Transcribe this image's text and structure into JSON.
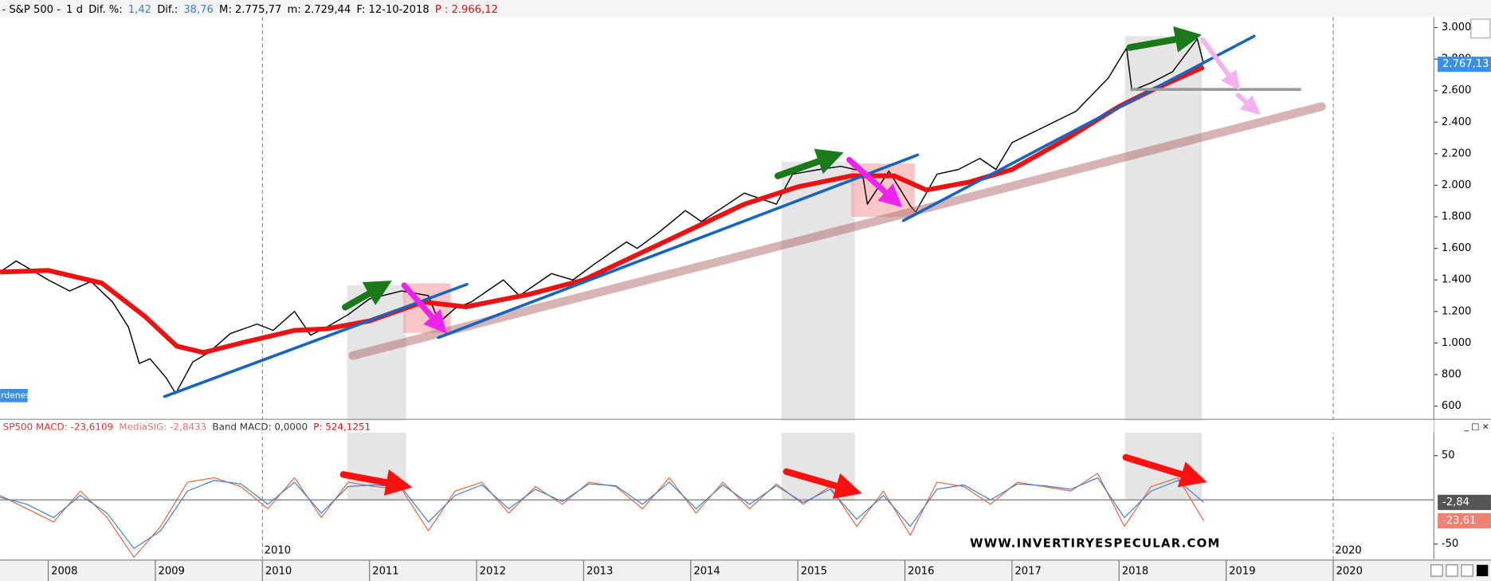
{
  "header": [
    {
      "text": "- S&P 500 -",
      "color": "#000000"
    },
    {
      "text": "1 d",
      "color": "#000000"
    },
    {
      "text": "Dif. %:",
      "color": "#000000"
    },
    {
      "text": "1,42",
      "color": "#3a7fd0"
    },
    {
      "text": "Dif.:",
      "color": "#000000"
    },
    {
      "text": "38,76",
      "color": "#3a7fd0"
    },
    {
      "text": "M: 2.775,77",
      "color": "#000000"
    },
    {
      "text": "m: 2.729,44",
      "color": "#000000"
    },
    {
      "text": "F: 12-10-2018",
      "color": "#000000"
    },
    {
      "text": "P : 2.966,12",
      "color": "#e01010"
    }
  ],
  "orders_button": "rdenes",
  "watermark": "WWW.INVERTIRYESPECULAR.COM",
  "chart_data": [
    {
      "type": "line",
      "xlim": [
        2007.55,
        2020.94
      ],
      "ylim": [
        522,
        3066
      ],
      "yticks": [
        {
          "value": 600,
          "label": "600"
        },
        {
          "value": 800,
          "label": "800"
        },
        {
          "value": 1000,
          "label": "1.000"
        },
        {
          "value": 1200,
          "label": "1.200"
        },
        {
          "value": 1400,
          "label": "1.400"
        },
        {
          "value": 1600,
          "label": "1.600"
        },
        {
          "value": 1800,
          "label": "1.800"
        },
        {
          "value": 2000,
          "label": "2.000"
        },
        {
          "value": 2200,
          "label": "2.200"
        },
        {
          "value": 2400,
          "label": "2.400"
        },
        {
          "value": 2600,
          "label": "2.600"
        },
        {
          "value": 2800,
          "label": "2.800"
        },
        {
          "value": 3000,
          "label": "3.000"
        }
      ],
      "period_markers": [
        2010,
        2020
      ],
      "series": [
        {
          "name": "S&P 500",
          "color": "#000000",
          "width": 1.2,
          "x": [
            2007.55,
            2007.7,
            2007.8,
            2008.0,
            2008.2,
            2008.4,
            2008.6,
            2008.75,
            2008.85,
            2008.95,
            2009.1,
            2009.19,
            2009.35,
            2009.5,
            2009.7,
            2009.95,
            2010.1,
            2010.3,
            2010.45,
            2010.6,
            2010.8,
            2011.0,
            2011.3,
            2011.55,
            2011.65,
            2011.8,
            2011.95,
            2012.25,
            2012.4,
            2012.7,
            2012.9,
            2013.1,
            2013.4,
            2013.5,
            2013.7,
            2013.95,
            2014.1,
            2014.5,
            2014.8,
            2014.95,
            2015.2,
            2015.4,
            2015.6,
            2015.65,
            2015.85,
            2016.05,
            2016.1,
            2016.3,
            2016.5,
            2016.7,
            2016.85,
            2017.0,
            2017.3,
            2017.6,
            2017.9,
            2018.07,
            2018.12,
            2018.3,
            2018.5,
            2018.7,
            2018.73,
            2018.79
          ],
          "values": [
            1450,
            1520,
            1480,
            1400,
            1330,
            1390,
            1260,
            1100,
            870,
            900,
            780,
            680,
            880,
            940,
            1060,
            1120,
            1080,
            1200,
            1050,
            1100,
            1180,
            1280,
            1330,
            1300,
            1130,
            1220,
            1260,
            1400,
            1300,
            1440,
            1400,
            1500,
            1640,
            1600,
            1700,
            1840,
            1770,
            1950,
            1880,
            2070,
            2100,
            2120,
            2090,
            1880,
            2090,
            1870,
            1830,
            2070,
            2100,
            2170,
            2100,
            2270,
            2370,
            2470,
            2680,
            2870,
            2600,
            2650,
            2720,
            2900,
            2930,
            2767
          ],
          "last_label": "2.767,13",
          "label_color": "#3a8ee6"
        },
        {
          "name": "Media",
          "color": "#ee1111",
          "width": 5,
          "x": [
            2007.55,
            2008.0,
            2008.5,
            2008.9,
            2009.2,
            2009.45,
            2009.8,
            2010.3,
            2010.6,
            2011.0,
            2011.5,
            2011.9,
            2012.5,
            2013.0,
            2013.5,
            2014.0,
            2014.5,
            2015.0,
            2015.5,
            2015.9,
            2016.2,
            2016.6,
            2017.0,
            2017.5,
            2018.0,
            2018.3,
            2018.79
          ],
          "values": [
            1450,
            1460,
            1380,
            1170,
            980,
            940,
            1000,
            1080,
            1090,
            1140,
            1260,
            1230,
            1310,
            1400,
            1560,
            1720,
            1880,
            1990,
            2060,
            2060,
            1970,
            2020,
            2100,
            2290,
            2500,
            2600,
            2750
          ]
        }
      ]
    },
    {
      "type": "line",
      "title": [
        {
          "text": "SP500 MACD: -23,6109",
          "color": "#e03030"
        },
        {
          "text": "MediaSIG: -2,8433",
          "color": "#f07070"
        },
        {
          "text": "Band MACD: 0,0000",
          "color": "#333333"
        },
        {
          "text": "P: 524,1251",
          "color": "#e01010"
        }
      ],
      "xlim": [
        2007.55,
        2020.94
      ],
      "ylim": [
        -67,
        76
      ],
      "xticks": [
        2008,
        2009,
        2010,
        2011,
        2012,
        2013,
        2014,
        2015,
        2016,
        2017,
        2018,
        2019,
        2020
      ],
      "yticks": [
        -50,
        50
      ],
      "series": [
        {
          "name": "MACD",
          "color": "#e8643c",
          "label_color": "#f08070",
          "x": [
            2007.55,
            2007.8,
            2008.05,
            2008.3,
            2008.55,
            2008.8,
            2009.05,
            2009.3,
            2009.55,
            2009.8,
            2010.05,
            2010.3,
            2010.55,
            2010.8,
            2011.05,
            2011.3,
            2011.55,
            2011.8,
            2012.05,
            2012.3,
            2012.55,
            2012.8,
            2013.05,
            2013.3,
            2013.55,
            2013.8,
            2014.05,
            2014.3,
            2014.55,
            2014.8,
            2015.05,
            2015.3,
            2015.55,
            2015.8,
            2016.05,
            2016.3,
            2016.55,
            2016.8,
            2017.05,
            2017.3,
            2017.55,
            2017.8,
            2018.05,
            2018.3,
            2018.55,
            2018.79
          ],
          "values": [
            5,
            -10,
            -25,
            10,
            -20,
            -65,
            -30,
            20,
            25,
            15,
            -10,
            25,
            -20,
            20,
            15,
            12,
            -35,
            10,
            20,
            -15,
            15,
            -5,
            20,
            15,
            -10,
            25,
            -15,
            20,
            -10,
            18,
            -5,
            15,
            -30,
            10,
            -40,
            20,
            15,
            -5,
            20,
            15,
            10,
            30,
            -30,
            15,
            25,
            -23.61
          ],
          "last_label": "-23,61"
        },
        {
          "name": "MediaSIG",
          "color": "#3a7fd0",
          "label_color": "#555555",
          "x": [
            2007.55,
            2007.8,
            2008.05,
            2008.3,
            2008.55,
            2008.8,
            2009.05,
            2009.3,
            2009.55,
            2009.8,
            2010.05,
            2010.3,
            2010.55,
            2010.8,
            2011.05,
            2011.3,
            2011.55,
            2011.8,
            2012.05,
            2012.3,
            2012.55,
            2012.8,
            2013.05,
            2013.3,
            2013.55,
            2013.8,
            2014.05,
            2014.3,
            2014.55,
            2014.8,
            2015.05,
            2015.3,
            2015.55,
            2015.8,
            2016.05,
            2016.3,
            2016.55,
            2016.8,
            2017.05,
            2017.3,
            2017.55,
            2017.8,
            2018.05,
            2018.3,
            2018.55,
            2018.79
          ],
          "values": [
            3,
            -5,
            -20,
            5,
            -15,
            -55,
            -35,
            10,
            22,
            18,
            -5,
            20,
            -15,
            15,
            17,
            14,
            -25,
            5,
            17,
            -10,
            12,
            -2,
            18,
            16,
            -5,
            20,
            -10,
            17,
            -5,
            16,
            -3,
            12,
            -22,
            5,
            -30,
            12,
            17,
            0,
            18,
            16,
            12,
            25,
            -20,
            10,
            22,
            -2.84
          ],
          "last_label": "-2,84"
        }
      ]
    }
  ]
}
